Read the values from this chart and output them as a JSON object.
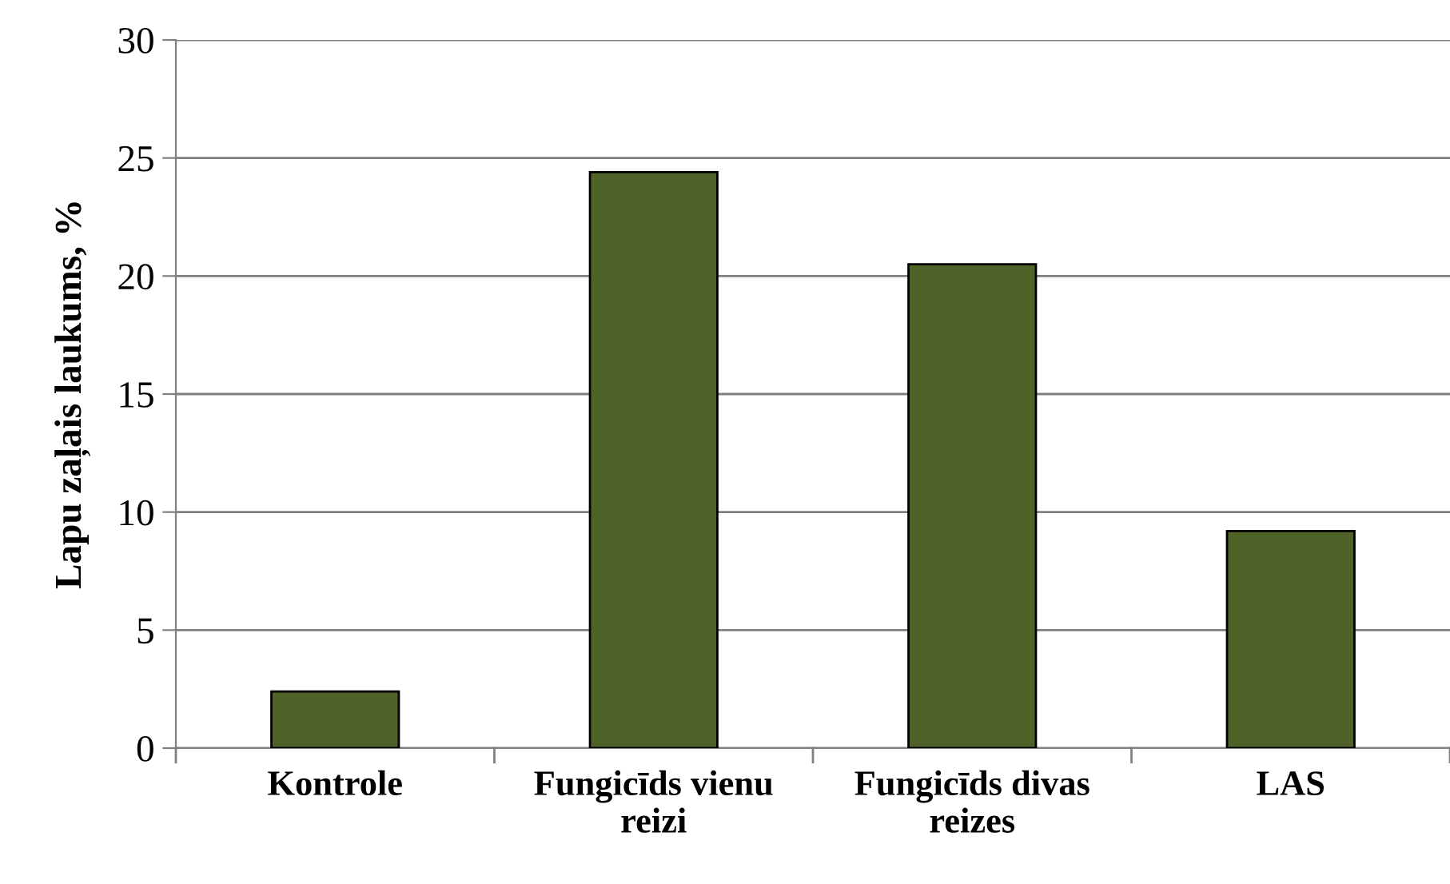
{
  "chart_data": {
    "type": "bar",
    "ylabel": "Lapu zaļais laukums, %",
    "categories": [
      "Kontrole",
      "Fungicīds vienu reizi",
      "Fungicīds divas reizes",
      "LAS"
    ],
    "values": [
      2.4,
      24.4,
      20.5,
      9.2
    ],
    "color": "#4f6228",
    "ylim": [
      0,
      30
    ],
    "yticks": [
      0,
      5,
      10,
      15,
      20,
      25,
      30
    ],
    "grid": "y"
  }
}
